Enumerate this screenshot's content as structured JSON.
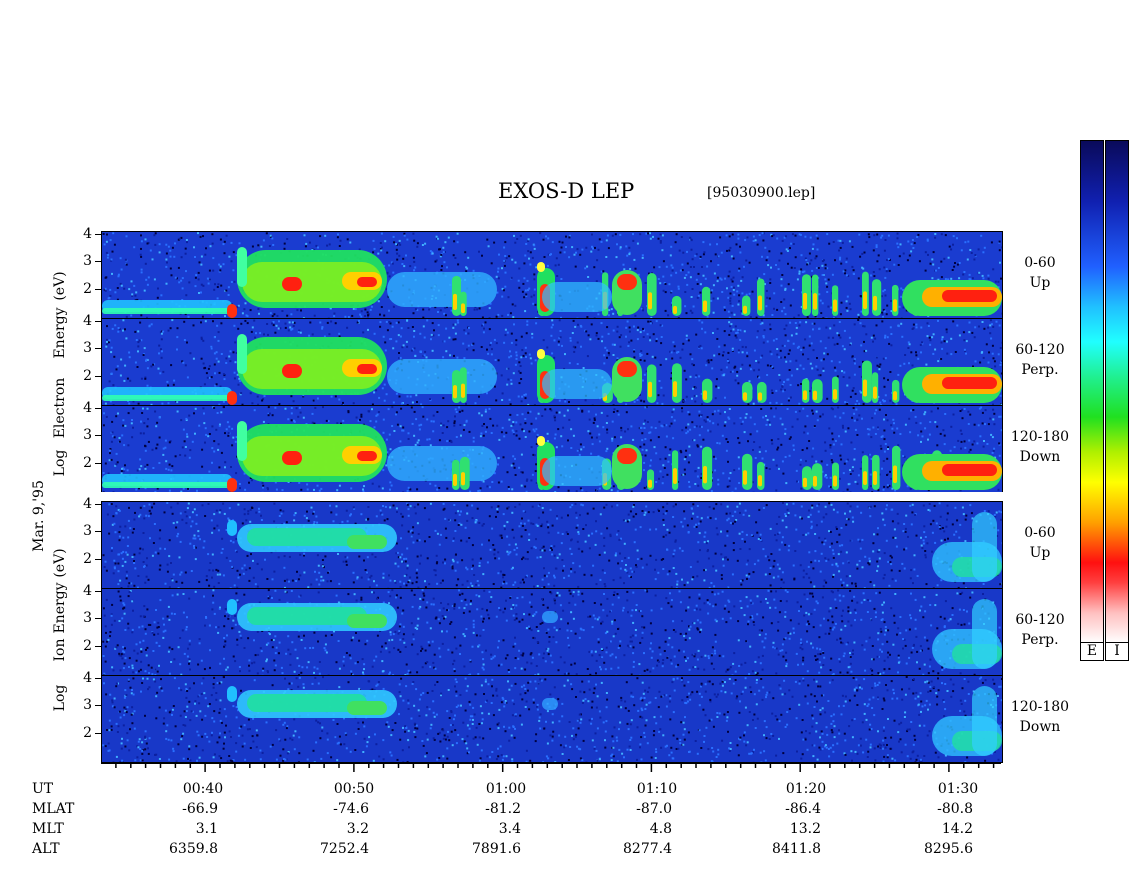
{
  "title": "EXOS-D LEP",
  "filename": "[95030900.lep]",
  "date_label": "Mar. 9,'95",
  "electron_block": {
    "ylabel_left": "Log",
    "ylabel_mid": "Electron",
    "ylabel_right": "Energy",
    "ylabel_units": "(eV)"
  },
  "ion_block": {
    "ylabel_left": "Log",
    "ylabel_mid": "Ion",
    "ylabel_right": "Energy",
    "ylabel_units": "(eV)"
  },
  "panels": [
    {
      "species": "Electron",
      "channel_range": "0-60",
      "channel_dir": "Up",
      "ticks": [
        "4",
        "3",
        "2"
      ]
    },
    {
      "species": "Electron",
      "channel_range": "60-120",
      "channel_dir": "Perp.",
      "ticks": [
        "4",
        "3",
        "2"
      ]
    },
    {
      "species": "Electron",
      "channel_range": "120-180",
      "channel_dir": "Down",
      "ticks": [
        "4",
        "3",
        "2"
      ]
    },
    {
      "species": "Ion",
      "channel_range": "0-60",
      "channel_dir": "Up",
      "ticks": [
        "4",
        "3",
        "2"
      ]
    },
    {
      "species": "Ion",
      "channel_range": "60-120",
      "channel_dir": "Perp.",
      "ticks": [
        "4",
        "3",
        "2"
      ]
    },
    {
      "species": "Ion",
      "channel_range": "120-180",
      "channel_dir": "Down",
      "ticks": [
        "4",
        "3",
        "2"
      ]
    }
  ],
  "colorbar": {
    "labels": [
      "E",
      "I"
    ],
    "colors": [
      "#0a0a5a",
      "#1020b0",
      "#2060ff",
      "#20c0ff",
      "#20ffff",
      "#20e020",
      "#ffff00",
      "#ffa000",
      "#ff1010",
      "#ffc0c0",
      "#ffffff"
    ]
  },
  "table": {
    "row_labels": [
      "UT",
      "MLAT",
      "MLT",
      "ALT"
    ],
    "columns": [
      {
        "UT": "00:40",
        "MLAT": "-66.9",
        "MLT": "3.1",
        "ALT": "6359.8"
      },
      {
        "UT": "00:50",
        "MLAT": "-74.6",
        "MLT": "3.2",
        "ALT": "7252.4"
      },
      {
        "UT": "01:00",
        "MLAT": "-81.2",
        "MLT": "3.4",
        "ALT": "7891.6"
      },
      {
        "UT": "01:10",
        "MLAT": "-87.0",
        "MLT": "4.8",
        "ALT": "8277.4"
      },
      {
        "UT": "01:20",
        "MLAT": "-86.4",
        "MLT": "13.2",
        "ALT": "8411.8"
      },
      {
        "UT": "01:30",
        "MLAT": "-80.8",
        "MLT": "14.2",
        "ALT": "8295.6"
      }
    ]
  },
  "chart_data": {
    "type": "heatmap",
    "title": "EXOS-D LEP",
    "xlabel": "UT",
    "ylabel": "Log Energy (eV)",
    "x_ticks": [
      "00:40",
      "00:50",
      "01:00",
      "01:10",
      "01:20",
      "01:30"
    ],
    "x_range": [
      "00:33",
      "01:33"
    ],
    "ylim": [
      0.8,
      4.3
    ],
    "y_ticks": [
      2,
      3,
      4
    ],
    "series": [
      {
        "name": "Electron 0-60 Up"
      },
      {
        "name": "Electron 60-120 Perp."
      },
      {
        "name": "Electron 120-180 Down"
      },
      {
        "name": "Ion 0-60 Up"
      },
      {
        "name": "Ion 60-120 Perp."
      },
      {
        "name": "Ion 120-180 Down"
      }
    ]
  }
}
